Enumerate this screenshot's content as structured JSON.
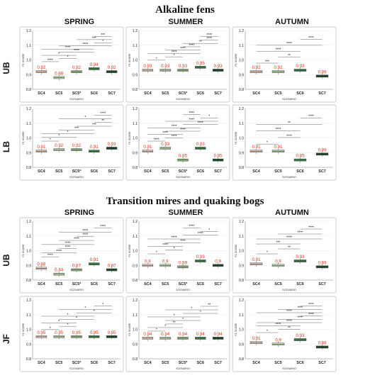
{
  "sections": [
    {
      "title": "Alkaline fens"
    },
    {
      "title": "Transition mires and quaking bogs"
    }
  ],
  "seasons": [
    "SPRING",
    "SUMMER",
    "AUTUMN"
  ],
  "row_labels": [
    "UB",
    "LB",
    "UB",
    "JF"
  ],
  "x_axis_title": "SCENARIO",
  "y_axis_title": "F1 SCORE",
  "y_ticks": [
    "0.8",
    "0.9",
    "1.0",
    "1.1",
    "1.2"
  ],
  "colors": {
    "SC4": "#f4d6c9",
    "SC5": "#c6e0b4",
    "SC5*": "#9dc48a",
    "SC6": "#3f8a4c",
    "SC7": "#1e4f2a",
    "value_label": "#d9341a"
  },
  "chart_data": [
    {
      "type": "box",
      "section": 0,
      "season": "SPRING",
      "row": "UB",
      "categories": [
        "SC4",
        "SC5",
        "SC5*",
        "SC6",
        "SC7"
      ],
      "values": [
        0.92,
        0.88,
        0.92,
        0.94,
        0.92
      ],
      "value_labels": [
        "0.92",
        "0.88",
        "0.92",
        "0.94",
        "0.92"
      ],
      "ylim": [
        0.8,
        1.2
      ],
      "comparisons": [
        {
          "a": 0,
          "b": 1,
          "sig": "****"
        },
        {
          "a": 1,
          "b": 2,
          "sig": "*"
        },
        {
          "a": 0,
          "b": 2,
          "sig": "*"
        },
        {
          "a": 1,
          "b": 3,
          "sig": "****"
        },
        {
          "a": 0,
          "b": 3,
          "sig": "****"
        },
        {
          "a": 1,
          "b": 4,
          "sig": "****"
        },
        {
          "a": 3,
          "b": 4,
          "sig": "*"
        },
        {
          "a": 2,
          "b": 4,
          "sig": "***"
        },
        {
          "a": 3,
          "b": 4,
          "sig": "***"
        }
      ]
    },
    {
      "type": "box",
      "section": 0,
      "season": "SUMMER",
      "row": "UB",
      "categories": [
        "SC4",
        "SC5",
        "SC5*",
        "SC6",
        "SC7"
      ],
      "values": [
        0.93,
        0.93,
        0.93,
        0.95,
        0.93
      ],
      "value_labels": [
        "0.93",
        "0.93",
        "0.93",
        "0.95",
        "0.93"
      ],
      "ylim": [
        0.8,
        1.2
      ],
      "comparisons": [
        {
          "a": 0,
          "b": 1,
          "sig": "*"
        },
        {
          "a": 1,
          "b": 2,
          "sig": "*"
        },
        {
          "a": 0,
          "b": 3,
          "sig": "****"
        },
        {
          "a": 1,
          "b": 3,
          "sig": "****"
        },
        {
          "a": 2,
          "b": 3,
          "sig": "****"
        },
        {
          "a": 2,
          "b": 4,
          "sig": "**"
        },
        {
          "a": 3,
          "b": 4,
          "sig": "****"
        },
        {
          "a": 3,
          "b": 4,
          "sig": "****"
        }
      ]
    },
    {
      "type": "box",
      "section": 0,
      "season": "AUTUMN",
      "row": "UB",
      "categories": [
        "SC4",
        "SC5",
        "SC6",
        "SC7"
      ],
      "values": [
        0.92,
        0.92,
        0.93,
        0.89
      ],
      "value_labels": [
        "0.92",
        "0.92",
        "0.93",
        "0.89"
      ],
      "ylim": [
        0.8,
        1.2
      ],
      "comparisons": [
        {
          "a": 0,
          "b": 1,
          "sig": "***"
        },
        {
          "a": 1,
          "b": 2,
          "sig": "**"
        },
        {
          "a": 0,
          "b": 2,
          "sig": "****"
        },
        {
          "a": 0,
          "b": 3,
          "sig": "****"
        },
        {
          "a": 2,
          "b": 3,
          "sig": "****"
        }
      ]
    },
    {
      "type": "box",
      "section": 0,
      "season": "SPRING",
      "row": "LB",
      "categories": [
        "SC4",
        "SC5",
        "SC5*",
        "SC6",
        "SC7"
      ],
      "values": [
        0.91,
        0.92,
        0.92,
        0.91,
        0.93
      ],
      "value_labels": [
        "0.91",
        "0.92",
        "0.92",
        "0.91",
        "0.93"
      ],
      "ylim": [
        0.8,
        1.2
      ],
      "comparisons": [
        {
          "a": 0,
          "b": 1,
          "sig": "*"
        },
        {
          "a": 0,
          "b": 2,
          "sig": "*"
        },
        {
          "a": 0,
          "b": 3,
          "sig": "*"
        },
        {
          "a": 1,
          "b": 3,
          "sig": "***"
        },
        {
          "a": 2,
          "b": 4,
          "sig": "***"
        },
        {
          "a": 3,
          "b": 4,
          "sig": "**"
        },
        {
          "a": 1,
          "b": 4,
          "sig": "*"
        },
        {
          "a": 3,
          "b": 4,
          "sig": "****"
        }
      ]
    },
    {
      "type": "box",
      "section": 0,
      "season": "SUMMER",
      "row": "LB",
      "categories": [
        "SC4",
        "SC5",
        "SC5*",
        "SC6",
        "SC7"
      ],
      "values": [
        0.91,
        0.93,
        0.85,
        0.93,
        0.85
      ],
      "value_labels": [
        "0.91",
        "0.93",
        "0.85",
        "0.93",
        "0.85"
      ],
      "ylim": [
        0.8,
        1.2
      ],
      "comparisons": [
        {
          "a": 0,
          "b": 1,
          "sig": "****"
        },
        {
          "a": 1,
          "b": 2,
          "sig": "****"
        },
        {
          "a": 0,
          "b": 2,
          "sig": "****"
        },
        {
          "a": 1,
          "b": 3,
          "sig": "****"
        },
        {
          "a": 0,
          "b": 3,
          "sig": "****"
        },
        {
          "a": 2,
          "b": 4,
          "sig": "****"
        },
        {
          "a": 1,
          "b": 4,
          "sig": "****"
        },
        {
          "a": 3,
          "b": 4,
          "sig": "*"
        },
        {
          "a": 2,
          "b": 3,
          "sig": "****"
        }
      ]
    },
    {
      "type": "box",
      "section": 0,
      "season": "AUTUMN",
      "row": "LB",
      "categories": [
        "SC4",
        "SC5",
        "SC6",
        "SC7"
      ],
      "values": [
        0.91,
        0.91,
        0.85,
        0.89
      ],
      "value_labels": [
        "0.91",
        "0.91",
        "0.85",
        "0.89"
      ],
      "ylim": [
        0.8,
        1.2
      ],
      "comparisons": [
        {
          "a": 0,
          "b": 1,
          "sig": "*"
        },
        {
          "a": 1,
          "b": 2,
          "sig": "****"
        },
        {
          "a": 0,
          "b": 2,
          "sig": "****"
        },
        {
          "a": 0,
          "b": 3,
          "sig": "**"
        },
        {
          "a": 2,
          "b": 3,
          "sig": "****"
        }
      ]
    },
    {
      "type": "box",
      "section": 1,
      "season": "SPRING",
      "row": "UB",
      "categories": [
        "SC4",
        "SC5",
        "SC5*",
        "SC6",
        "SC7"
      ],
      "values": [
        0.88,
        0.84,
        0.87,
        0.91,
        0.87
      ],
      "value_labels": [
        "0.88",
        "0.84",
        "0.87",
        "0.91",
        "0.87"
      ],
      "ylim": [
        0.8,
        1.2
      ],
      "comparisons": [
        {
          "a": 0,
          "b": 1,
          "sig": "****"
        },
        {
          "a": 0,
          "b": 2,
          "sig": "****"
        },
        {
          "a": 1,
          "b": 2,
          "sig": "****"
        },
        {
          "a": 0,
          "b": 3,
          "sig": "****"
        },
        {
          "a": 1,
          "b": 3,
          "sig": "****"
        },
        {
          "a": 2,
          "b": 3,
          "sig": "****"
        },
        {
          "a": 1,
          "b": 4,
          "sig": "****"
        },
        {
          "a": 3,
          "b": 4,
          "sig": "****"
        }
      ]
    },
    {
      "type": "box",
      "section": 1,
      "season": "SUMMER",
      "row": "UB",
      "categories": [
        "SC4",
        "SC5",
        "SC5*",
        "SC6",
        "SC7"
      ],
      "values": [
        0.9,
        0.9,
        0.89,
        0.93,
        0.9
      ],
      "value_labels": [
        "0.9",
        "0.9",
        "0.89",
        "0.93",
        "0.9"
      ],
      "ylim": [
        0.8,
        1.2
      ],
      "comparisons": [
        {
          "a": 0,
          "b": 1,
          "sig": "*"
        },
        {
          "a": 1,
          "b": 2,
          "sig": "*"
        },
        {
          "a": 0,
          "b": 2,
          "sig": "****"
        },
        {
          "a": 1,
          "b": 3,
          "sig": "****"
        },
        {
          "a": 0,
          "b": 3,
          "sig": "****"
        },
        {
          "a": 2,
          "b": 4,
          "sig": "****"
        },
        {
          "a": 3,
          "b": 4,
          "sig": "*"
        },
        {
          "a": 2,
          "b": 3,
          "sig": "****"
        }
      ]
    },
    {
      "type": "box",
      "section": 1,
      "season": "AUTUMN",
      "row": "UB",
      "categories": [
        "SC4",
        "SC5",
        "SC6",
        "SC7"
      ],
      "values": [
        0.91,
        0.9,
        0.93,
        0.89
      ],
      "value_labels": [
        "0.91",
        "0.9",
        "0.93",
        "0.89"
      ],
      "ylim": [
        0.8,
        1.2
      ],
      "comparisons": [
        {
          "a": 0,
          "b": 1,
          "sig": "*"
        },
        {
          "a": 1,
          "b": 2,
          "sig": "**"
        },
        {
          "a": 0,
          "b": 2,
          "sig": "***"
        },
        {
          "a": 0,
          "b": 3,
          "sig": "****"
        },
        {
          "a": 1,
          "b": 3,
          "sig": "****"
        },
        {
          "a": 2,
          "b": 3,
          "sig": "****"
        }
      ]
    },
    {
      "type": "box",
      "section": 1,
      "season": "SPRING",
      "row": "JF",
      "categories": [
        "SC4",
        "SC5",
        "SC5*",
        "SC6",
        "SC7"
      ],
      "values": [
        0.95,
        0.95,
        0.95,
        0.95,
        0.95
      ],
      "value_labels": [
        "0.95",
        "0.95",
        "0.95",
        "0.95",
        "0.95"
      ],
      "ylim": [
        0.8,
        1.2
      ],
      "comparisons": [
        {
          "a": 0,
          "b": 1,
          "sig": "*"
        },
        {
          "a": 1,
          "b": 2,
          "sig": "*"
        },
        {
          "a": 0,
          "b": 2,
          "sig": "*"
        },
        {
          "a": 1,
          "b": 3,
          "sig": "*"
        },
        {
          "a": 0,
          "b": 3,
          "sig": "*"
        },
        {
          "a": 2,
          "b": 4,
          "sig": "*"
        },
        {
          "a": 1,
          "b": 4,
          "sig": "*"
        },
        {
          "a": 3,
          "b": 4,
          "sig": "*"
        }
      ]
    },
    {
      "type": "box",
      "section": 1,
      "season": "SUMMER",
      "row": "JF",
      "categories": [
        "SC4",
        "SC5",
        "SC5*",
        "SC6",
        "SC7"
      ],
      "values": [
        0.94,
        0.94,
        0.94,
        0.94,
        0.94
      ],
      "value_labels": [
        "0.94",
        "0.94",
        "0.94",
        "0.94",
        "0.94"
      ],
      "ylim": [
        0.8,
        1.2
      ],
      "comparisons": [
        {
          "a": 0,
          "b": 1,
          "sig": "*"
        },
        {
          "a": 0,
          "b": 2,
          "sig": "*"
        },
        {
          "a": 1,
          "b": 2,
          "sig": "**"
        },
        {
          "a": 1,
          "b": 3,
          "sig": "*"
        },
        {
          "a": 0,
          "b": 3,
          "sig": "*"
        },
        {
          "a": 2,
          "b": 4,
          "sig": "*"
        },
        {
          "a": 1,
          "b": 4,
          "sig": "*"
        },
        {
          "a": 3,
          "b": 4,
          "sig": "**"
        }
      ]
    },
    {
      "type": "box",
      "section": 1,
      "season": "AUTUMN",
      "row": "JF",
      "categories": [
        "SC4",
        "SC5",
        "SC6",
        "SC7"
      ],
      "values": [
        0.91,
        0.9,
        0.93,
        0.88
      ],
      "value_labels": [
        "0.91",
        "0.9",
        "0.93",
        "0.88"
      ],
      "ylim": [
        0.8,
        1.2
      ],
      "comparisons": [
        {
          "a": 0,
          "b": 1,
          "sig": "*"
        },
        {
          "a": 1,
          "b": 2,
          "sig": "**"
        },
        {
          "a": 0,
          "b": 2,
          "sig": "****"
        },
        {
          "a": 0,
          "b": 3,
          "sig": "****"
        },
        {
          "a": 1,
          "b": 3,
          "sig": "****"
        },
        {
          "a": 2,
          "b": 3,
          "sig": "****"
        },
        {
          "a": 0,
          "b": 3,
          "sig": "****"
        },
        {
          "a": 1,
          "b": 3,
          "sig": "****"
        },
        {
          "a": 2,
          "b": 3,
          "sig": "****"
        }
      ]
    }
  ]
}
